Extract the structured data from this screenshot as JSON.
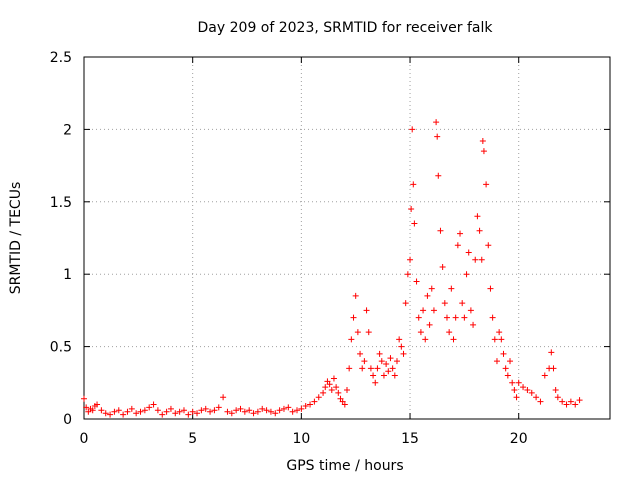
{
  "chart_data": {
    "type": "scatter",
    "title": "Day 209 of 2023, SRMTID for receiver falk",
    "xlabel": "GPS time / hours",
    "ylabel": "SRMTID / TECUs",
    "xlim": [
      0,
      24.2
    ],
    "ylim": [
      0,
      2.5
    ],
    "xticks": [
      0,
      5,
      10,
      15,
      20
    ],
    "xtick_labels": [
      "0",
      "5",
      "10",
      "15",
      "20"
    ],
    "yticks": [
      0,
      0.5,
      1,
      1.5,
      2,
      2.5
    ],
    "ytick_labels": [
      "0",
      "0.5",
      "1",
      "1.5",
      "2",
      "2.5"
    ],
    "grid": true,
    "marker": "+",
    "color": "#ff0000",
    "series": [
      {
        "name": "SRMTID",
        "x": [
          0.0,
          0.1,
          0.2,
          0.3,
          0.4,
          0.5,
          0.6,
          0.8,
          1.0,
          1.2,
          1.4,
          1.6,
          1.8,
          2.0,
          2.2,
          2.4,
          2.6,
          2.8,
          3.0,
          3.2,
          3.4,
          3.6,
          3.8,
          4.0,
          4.2,
          4.4,
          4.6,
          4.8,
          5.0,
          5.2,
          5.4,
          5.6,
          5.8,
          6.0,
          6.2,
          6.4,
          6.6,
          6.8,
          7.0,
          7.2,
          7.4,
          7.6,
          7.8,
          8.0,
          8.2,
          8.4,
          8.6,
          8.8,
          9.0,
          9.2,
          9.4,
          9.6,
          9.8,
          10.0,
          10.2,
          10.4,
          10.6,
          10.8,
          11.0,
          11.1,
          11.2,
          11.3,
          11.4,
          11.5,
          11.6,
          11.7,
          11.8,
          11.9,
          12.0,
          12.1,
          12.2,
          12.3,
          12.4,
          12.5,
          12.6,
          12.7,
          12.8,
          12.9,
          13.0,
          13.1,
          13.2,
          13.3,
          13.4,
          13.5,
          13.6,
          13.7,
          13.8,
          13.9,
          14.0,
          14.1,
          14.2,
          14.3,
          14.4,
          14.5,
          14.6,
          14.7,
          14.8,
          14.9,
          15.0,
          15.05,
          15.1,
          15.15,
          15.2,
          15.3,
          15.4,
          15.5,
          15.6,
          15.7,
          15.8,
          15.9,
          16.0,
          16.1,
          16.2,
          16.25,
          16.3,
          16.4,
          16.5,
          16.6,
          16.7,
          16.8,
          16.9,
          17.0,
          17.1,
          17.2,
          17.3,
          17.4,
          17.5,
          17.6,
          17.7,
          17.8,
          17.9,
          18.0,
          18.1,
          18.2,
          18.3,
          18.35,
          18.4,
          18.5,
          18.6,
          18.7,
          18.8,
          18.9,
          19.0,
          19.1,
          19.2,
          19.3,
          19.4,
          19.5,
          19.6,
          19.7,
          19.8,
          19.9,
          20.0,
          20.2,
          20.4,
          20.6,
          20.8,
          21.0,
          21.2,
          21.4,
          21.5,
          21.6,
          21.7,
          21.8,
          22.0,
          22.2,
          22.4,
          22.6,
          22.8
        ],
        "y": [
          0.14,
          0.08,
          0.05,
          0.07,
          0.06,
          0.09,
          0.1,
          0.06,
          0.04,
          0.03,
          0.05,
          0.06,
          0.03,
          0.05,
          0.07,
          0.04,
          0.05,
          0.06,
          0.08,
          0.1,
          0.06,
          0.03,
          0.05,
          0.07,
          0.04,
          0.05,
          0.06,
          0.03,
          0.05,
          0.04,
          0.06,
          0.07,
          0.05,
          0.06,
          0.08,
          0.15,
          0.05,
          0.04,
          0.06,
          0.07,
          0.05,
          0.06,
          0.04,
          0.05,
          0.07,
          0.06,
          0.05,
          0.04,
          0.06,
          0.07,
          0.08,
          0.05,
          0.06,
          0.07,
          0.09,
          0.1,
          0.12,
          0.15,
          0.18,
          0.22,
          0.26,
          0.24,
          0.2,
          0.28,
          0.22,
          0.18,
          0.14,
          0.12,
          0.1,
          0.2,
          0.35,
          0.55,
          0.7,
          0.85,
          0.6,
          0.45,
          0.35,
          0.4,
          0.75,
          0.6,
          0.35,
          0.3,
          0.25,
          0.35,
          0.45,
          0.4,
          0.3,
          0.38,
          0.33,
          0.42,
          0.35,
          0.3,
          0.4,
          0.55,
          0.5,
          0.45,
          0.8,
          1.0,
          1.1,
          1.45,
          2.0,
          1.62,
          1.35,
          0.95,
          0.7,
          0.6,
          0.75,
          0.55,
          0.85,
          0.65,
          0.9,
          0.75,
          2.05,
          1.95,
          1.68,
          1.3,
          1.05,
          0.8,
          0.7,
          0.6,
          0.9,
          0.55,
          0.7,
          1.2,
          1.28,
          0.8,
          0.7,
          1.0,
          1.15,
          0.75,
          0.65,
          1.1,
          1.4,
          1.3,
          1.1,
          1.92,
          1.85,
          1.62,
          1.2,
          0.9,
          0.7,
          0.55,
          0.4,
          0.6,
          0.55,
          0.45,
          0.35,
          0.3,
          0.4,
          0.25,
          0.2,
          0.15,
          0.25,
          0.22,
          0.2,
          0.18,
          0.15,
          0.12,
          0.3,
          0.35,
          0.46,
          0.35,
          0.2,
          0.15,
          0.12,
          0.1,
          0.12,
          0.1,
          0.13
        ]
      }
    ]
  }
}
